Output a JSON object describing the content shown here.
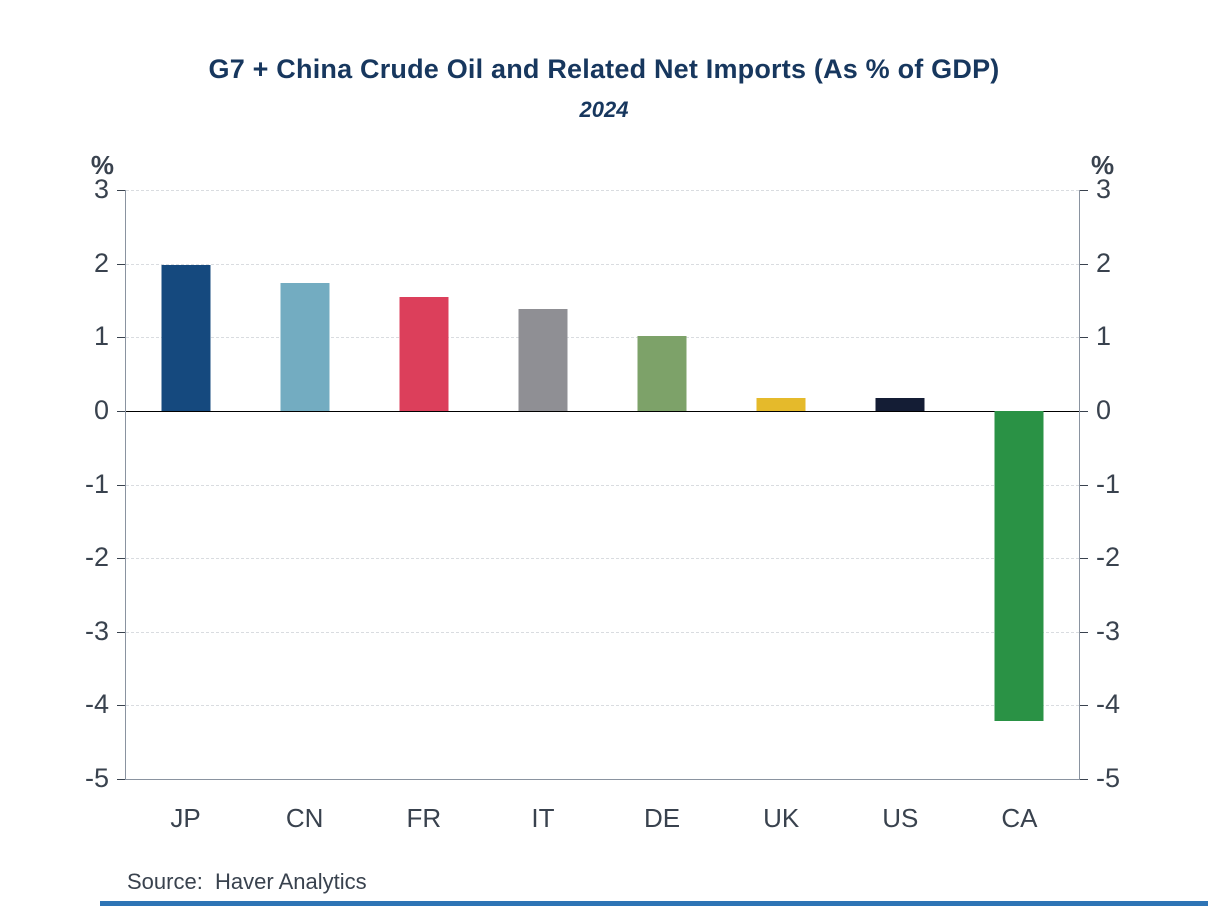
{
  "page": {
    "title": "G7 + China Crude Oil and Related Net Imports (As % of GDP)",
    "subtitle": "2024",
    "source_label": "Source:  Haver Analytics"
  },
  "chart_data": {
    "type": "bar",
    "title": "G7 + China Crude Oil and Related Net Imports (As % of GDP)",
    "subtitle": "2024",
    "categories": [
      "JP",
      "CN",
      "FR",
      "IT",
      "DE",
      "UK",
      "US",
      "CA"
    ],
    "values": [
      1.98,
      1.74,
      1.54,
      1.39,
      1.02,
      0.18,
      0.18,
      -4.21
    ],
    "bar_colors": [
      "#15497E",
      "#73ACC1",
      "#DC3F5B",
      "#8F8F94",
      "#7DA269",
      "#E5BA2B",
      "#141D35",
      "#2A9245"
    ],
    "ylabel_left": "%",
    "ylabel_right": "%",
    "ylim": [
      -5,
      3
    ],
    "yticks": [
      3,
      2,
      1,
      0,
      -1,
      -2,
      -3,
      -4,
      -5
    ],
    "grid": "horizontal-dashed",
    "zero_line": true,
    "legend": "none",
    "source": "Source:  Haver Analytics"
  },
  "theme": {
    "title_color": "#17375E",
    "axis_text_color": "#39424E",
    "axis_line_color": "#8A93A0",
    "gridline_color": "#D9DCE0",
    "zero_line_color": "#000000",
    "bottom_bar_color": "#2E74B5",
    "background": "#FFFFFF"
  }
}
